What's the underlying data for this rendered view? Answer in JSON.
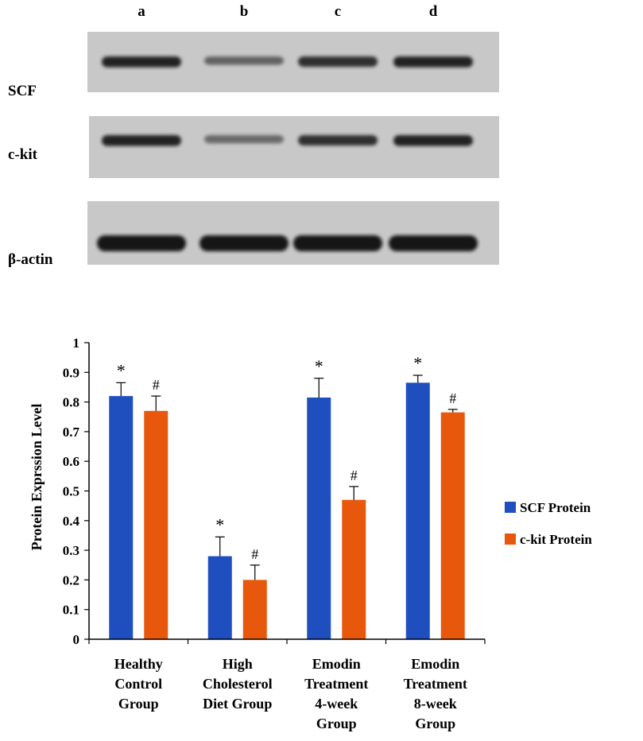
{
  "blot": {
    "lanes": [
      "a",
      "b",
      "c",
      "d"
    ],
    "rows": [
      {
        "label": "SCF",
        "intensities": [
          0.95,
          0.45,
          0.85,
          0.95
        ],
        "dark": "#1c1c1c"
      },
      {
        "label": "c-kit",
        "intensities": [
          0.95,
          0.4,
          0.85,
          0.95
        ],
        "dark": "#1c1c1c"
      },
      {
        "label": "β-actin",
        "intensities": [
          1.0,
          1.0,
          1.0,
          1.0
        ],
        "dark": "#141414"
      }
    ],
    "background": "#c8c8c8"
  },
  "chart_data": {
    "type": "bar",
    "title": "",
    "xlabel": "",
    "ylabel": "Protein Exprssion Level",
    "ylim": [
      0,
      1
    ],
    "yticks": [
      "0",
      "0.1",
      "0.2",
      "0.3",
      "0.4",
      "0.5",
      "0.6",
      "0.7",
      "0.8",
      "0.9",
      "1"
    ],
    "categories": [
      [
        "Healthy",
        "Control",
        "Group"
      ],
      [
        "High",
        "Cholesterol",
        "Diet Group"
      ],
      [
        "Emodin",
        "Treatment",
        "4-week",
        "Group"
      ],
      [
        "Emodin",
        "Treatment",
        "8-week",
        "Group"
      ]
    ],
    "series": [
      {
        "name": "SCF Protein",
        "color": "#1f4fbf",
        "values": [
          0.82,
          0.28,
          0.815,
          0.865
        ],
        "errors": [
          0.045,
          0.065,
          0.065,
          0.025
        ],
        "marker": "*"
      },
      {
        "name": "c-kit Protein",
        "color": "#e8580c",
        "values": [
          0.77,
          0.2,
          0.47,
          0.765
        ],
        "errors": [
          0.05,
          0.05,
          0.045,
          0.01
        ],
        "marker": "#"
      }
    ],
    "legend": "right"
  }
}
